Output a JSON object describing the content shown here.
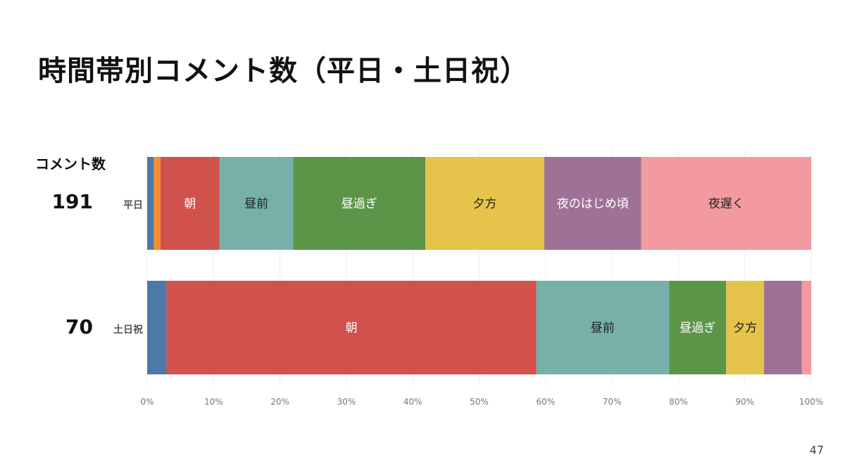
{
  "title": "時間帯別コメント数（平日・土日祝）",
  "count_header": "コメント数",
  "page_number": "47",
  "chart_data": {
    "type": "bar",
    "orientation": "horizontal",
    "stacked": "100%",
    "xlim": [
      0,
      100
    ],
    "ticks": [
      "0%",
      "10%",
      "20%",
      "30%",
      "40%",
      "50%",
      "60%",
      "70%",
      "80%",
      "90%",
      "100%"
    ],
    "grid": true,
    "rows": [
      {
        "label": "平日",
        "count": "191",
        "segments": [
          {
            "value": 1.0,
            "color": "#4e79a7",
            "label": ""
          },
          {
            "value": 1.0,
            "color": "#f28e2b",
            "label": ""
          },
          {
            "value": 8.9,
            "color": "#d1514d",
            "label": "朝",
            "label_color": "#ffffff"
          },
          {
            "value": 11.1,
            "color": "#76b0a9",
            "label": "昼前",
            "label_color": "#222222"
          },
          {
            "value": 19.9,
            "color": "#5c9548",
            "label": "昼過ぎ",
            "label_color": "#ffffff"
          },
          {
            "value": 17.9,
            "color": "#e6c34b",
            "label": "夕方",
            "label_color": "#222222"
          },
          {
            "value": 14.6,
            "color": "#a07197",
            "label": "夜のはじめ頃",
            "label_color": "#ffffff"
          },
          {
            "value": 25.6,
            "color": "#f29aa0",
            "label": "夜遅く",
            "label_color": "#222222"
          }
        ]
      },
      {
        "label": "土日祝",
        "count": "70",
        "segments": [
          {
            "value": 2.9,
            "color": "#4e79a7",
            "label": ""
          },
          {
            "value": 55.7,
            "color": "#d1514d",
            "label": "朝",
            "label_color": "#ffffff"
          },
          {
            "value": 20.0,
            "color": "#76b0a9",
            "label": "昼前",
            "label_color": "#222222"
          },
          {
            "value": 8.6,
            "color": "#5c9548",
            "label": "昼過ぎ",
            "label_color": "#ffffff"
          },
          {
            "value": 5.7,
            "color": "#e6c34b",
            "label": "夕方",
            "label_color": "#222222"
          },
          {
            "value": 5.7,
            "color": "#a07197",
            "label": ""
          },
          {
            "value": 1.4,
            "color": "#f29aa0",
            "label": ""
          }
        ]
      }
    ]
  }
}
